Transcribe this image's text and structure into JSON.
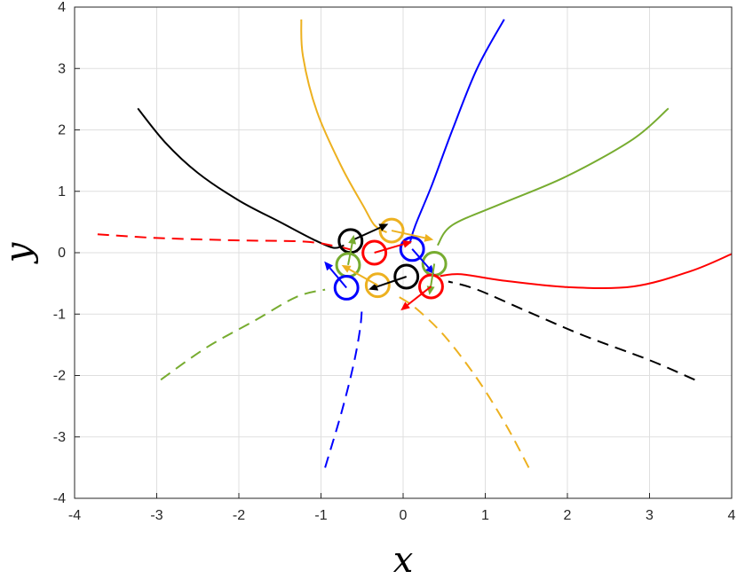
{
  "chart_data": {
    "type": "line",
    "title": "",
    "xlabel": "x",
    "ylabel": "y",
    "xlim": [
      -4,
      4
    ],
    "ylim": [
      -4,
      4
    ],
    "grid": true,
    "xticks": [
      -4,
      -3,
      -2,
      -1,
      0,
      1,
      2,
      3,
      4
    ],
    "yticks": [
      -4,
      -3,
      -2,
      -1,
      0,
      1,
      2,
      3,
      4
    ],
    "xtick_labels": [
      "-4",
      "-3",
      "-2",
      "-1",
      "0",
      "1",
      "2",
      "3",
      "4"
    ],
    "ytick_labels": [
      "-4",
      "-3",
      "-2",
      "-1",
      "0",
      "1",
      "2",
      "3",
      "4"
    ],
    "colors": {
      "blue": "#0000ff",
      "red": "#ff0000",
      "green": "#77ac30",
      "yellow": "#edb120",
      "black": "#000000"
    },
    "series": [
      {
        "color": "blue",
        "style": "solid",
        "points": [
          [
            1.23,
            3.8
          ],
          [
            0.9,
            3.0
          ],
          [
            0.6,
            2.0
          ],
          [
            0.35,
            1.1
          ],
          [
            0.15,
            0.45
          ],
          [
            0.08,
            0.15
          ]
        ]
      },
      {
        "color": "yellow",
        "style": "solid",
        "points": [
          [
            -1.24,
            3.8
          ],
          [
            -1.22,
            3.2
          ],
          [
            -1.05,
            2.3
          ],
          [
            -0.75,
            1.4
          ],
          [
            -0.48,
            0.75
          ],
          [
            -0.35,
            0.45
          ],
          [
            -0.2,
            0.33
          ]
        ]
      },
      {
        "color": "black",
        "style": "solid",
        "points": [
          [
            -3.23,
            2.35
          ],
          [
            -2.9,
            1.8
          ],
          [
            -2.5,
            1.3
          ],
          [
            -2.0,
            0.85
          ],
          [
            -1.5,
            0.5
          ],
          [
            -1.1,
            0.22
          ],
          [
            -0.85,
            0.08
          ],
          [
            -0.72,
            0.12
          ]
        ]
      },
      {
        "color": "green",
        "style": "solid",
        "points": [
          [
            3.23,
            2.35
          ],
          [
            2.8,
            1.85
          ],
          [
            2.0,
            1.25
          ],
          [
            1.2,
            0.8
          ],
          [
            0.6,
            0.45
          ],
          [
            0.42,
            0.12
          ]
        ]
      },
      {
        "color": "red",
        "style": "solid",
        "points": [
          [
            4.0,
            -0.02
          ],
          [
            3.5,
            -0.3
          ],
          [
            2.8,
            -0.55
          ],
          [
            2.0,
            -0.56
          ],
          [
            1.2,
            -0.45
          ],
          [
            0.7,
            -0.35
          ],
          [
            0.45,
            -0.38
          ]
        ]
      },
      {
        "color": "red",
        "style": "dashed",
        "points": [
          [
            -3.72,
            0.3
          ],
          [
            -3.0,
            0.24
          ],
          [
            -2.0,
            0.2
          ],
          [
            -1.2,
            0.18
          ],
          [
            -0.8,
            0.1
          ],
          [
            -0.55,
            0.02
          ]
        ]
      },
      {
        "color": "black",
        "style": "dashed",
        "points": [
          [
            3.55,
            -2.07
          ],
          [
            3.0,
            -1.75
          ],
          [
            2.2,
            -1.35
          ],
          [
            1.5,
            -0.95
          ],
          [
            0.9,
            -0.6
          ],
          [
            0.55,
            -0.47
          ]
        ]
      },
      {
        "color": "green",
        "style": "dashed",
        "points": [
          [
            -2.95,
            -2.07
          ],
          [
            -2.4,
            -1.55
          ],
          [
            -1.8,
            -1.1
          ],
          [
            -1.3,
            -0.72
          ],
          [
            -0.95,
            -0.6
          ]
        ]
      },
      {
        "color": "blue",
        "style": "dashed",
        "points": [
          [
            -0.95,
            -3.5
          ],
          [
            -0.75,
            -2.6
          ],
          [
            -0.6,
            -1.8
          ],
          [
            -0.52,
            -1.2
          ],
          [
            -0.5,
            -0.85
          ]
        ]
      },
      {
        "color": "yellow",
        "style": "dashed",
        "points": [
          [
            1.53,
            -3.5
          ],
          [
            1.25,
            -2.8
          ],
          [
            0.9,
            -2.05
          ],
          [
            0.5,
            -1.35
          ],
          [
            0.15,
            -0.9
          ],
          [
            -0.05,
            -0.72
          ]
        ]
      }
    ],
    "circles": [
      {
        "color": "black",
        "x": -0.64,
        "y": 0.19,
        "r": 0.14
      },
      {
        "color": "yellow",
        "x": -0.14,
        "y": 0.36,
        "r": 0.14
      },
      {
        "color": "red",
        "x": -0.35,
        "y": 0.0,
        "r": 0.14
      },
      {
        "color": "blue",
        "x": 0.11,
        "y": 0.06,
        "r": 0.14
      },
      {
        "color": "green",
        "x": -0.67,
        "y": -0.2,
        "r": 0.14
      },
      {
        "color": "green",
        "x": 0.38,
        "y": -0.18,
        "r": 0.14
      },
      {
        "color": "black",
        "x": 0.04,
        "y": -0.39,
        "r": 0.14
      },
      {
        "color": "yellow",
        "x": -0.31,
        "y": -0.53,
        "r": 0.14
      },
      {
        "color": "blue",
        "x": -0.69,
        "y": -0.57,
        "r": 0.14
      },
      {
        "color": "red",
        "x": 0.34,
        "y": -0.55,
        "r": 0.14
      }
    ],
    "arrows": [
      {
        "color": "black",
        "from": [
          -0.64,
          0.19
        ],
        "to": [
          -0.18,
          0.47
        ]
      },
      {
        "color": "yellow",
        "from": [
          -0.14,
          0.36
        ],
        "to": [
          0.37,
          0.21
        ]
      },
      {
        "color": "red",
        "from": [
          -0.35,
          0.0
        ],
        "to": [
          0.11,
          0.18
        ]
      },
      {
        "color": "blue",
        "from": [
          0.11,
          0.06
        ],
        "to": [
          0.38,
          -0.35
        ]
      },
      {
        "color": "green",
        "from": [
          -0.67,
          -0.2
        ],
        "to": [
          -0.6,
          0.29
        ]
      },
      {
        "color": "green",
        "from": [
          0.38,
          -0.18
        ],
        "to": [
          0.32,
          -0.69
        ]
      },
      {
        "color": "black",
        "from": [
          0.04,
          -0.39
        ],
        "to": [
          -0.42,
          -0.6
        ]
      },
      {
        "color": "yellow",
        "from": [
          -0.31,
          -0.53
        ],
        "to": [
          -0.75,
          -0.2
        ]
      },
      {
        "color": "blue",
        "from": [
          -0.69,
          -0.57
        ],
        "to": [
          -0.96,
          -0.14
        ]
      },
      {
        "color": "red",
        "from": [
          0.34,
          -0.55
        ],
        "to": [
          -0.03,
          -0.94
        ]
      }
    ]
  }
}
